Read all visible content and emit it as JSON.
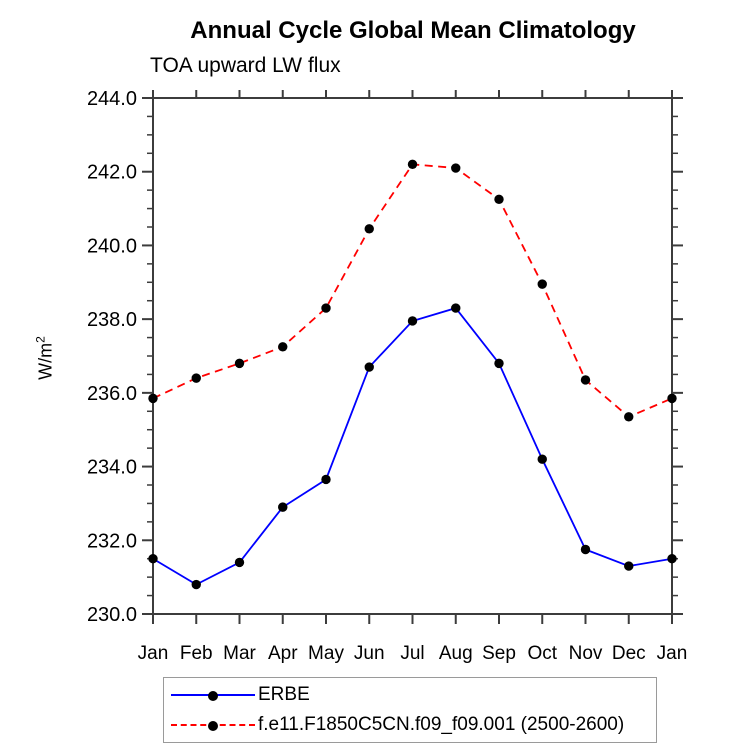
{
  "header": {
    "title": "Annual Cycle Global Mean Climatology",
    "subtitle": "TOA upward LW flux"
  },
  "axes": {
    "ylabel_base": "W/m",
    "ylabel_sup": "2",
    "ylabel_full": "W/m²"
  },
  "chart_data": {
    "type": "line",
    "title": "Annual Cycle Global Mean Climatology",
    "subtitle": "TOA upward LW flux",
    "ylabel": "W/m²",
    "categories": [
      "Jan",
      "Feb",
      "Mar",
      "Apr",
      "May",
      "Jun",
      "Jul",
      "Aug",
      "Sep",
      "Oct",
      "Nov",
      "Dec",
      "Jan"
    ],
    "series": [
      {
        "name": "ERBE",
        "color": "#0000ff",
        "line_style": "solid",
        "marker": "filled-circle",
        "marker_color": "#000000",
        "values": [
          231.5,
          230.8,
          231.4,
          232.9,
          233.65,
          236.7,
          237.95,
          238.3,
          236.8,
          234.2,
          231.75,
          231.3,
          231.5
        ]
      },
      {
        "name": "f.e11.F1850C5CN.f09_f09.001 (2500-2600)",
        "color": "#ff0000",
        "line_style": "dashed",
        "marker": "filled-circle",
        "marker_color": "#000000",
        "values": [
          235.85,
          236.4,
          236.8,
          237.25,
          238.3,
          240.45,
          242.2,
          242.1,
          241.25,
          238.95,
          236.35,
          235.35,
          235.85
        ]
      }
    ],
    "ylim": [
      230.0,
      244.0
    ],
    "ytick_major_interval": 2.0,
    "ytick_minor_interval": 0.5,
    "ytick_labels": [
      "230.0",
      "232.0",
      "234.0",
      "236.0",
      "238.0",
      "240.0",
      "242.0",
      "244.0"
    ],
    "grid": false,
    "legend_position": "bottom-left-box",
    "axis_color": "#3c3c3c"
  },
  "legend": {
    "items": [
      {
        "label": "ERBE",
        "color": "#0000ff",
        "style": "solid"
      },
      {
        "label": "f.e11.F1850C5CN.f09_f09.001 (2500-2600)",
        "color": "#ff0000",
        "style": "dashed"
      }
    ]
  }
}
